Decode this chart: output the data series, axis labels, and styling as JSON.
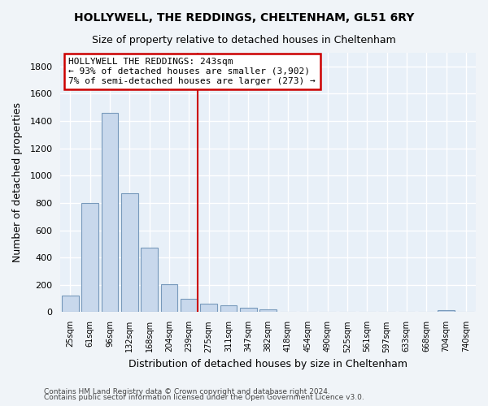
{
  "title": "HOLLYWELL, THE REDDINGS, CHELTENHAM, GL51 6RY",
  "subtitle": "Size of property relative to detached houses in Cheltenham",
  "xlabel": "Distribution of detached houses by size in Cheltenham",
  "ylabel": "Number of detached properties",
  "bar_color": "#c8d8ec",
  "bar_edge_color": "#7799bb",
  "background_color": "#f0f4f8",
  "plot_bg_color": "#e8f0f8",
  "grid_color": "#ffffff",
  "categories": [
    "25sqm",
    "61sqm",
    "96sqm",
    "132sqm",
    "168sqm",
    "204sqm",
    "239sqm",
    "275sqm",
    "311sqm",
    "347sqm",
    "382sqm",
    "418sqm",
    "454sqm",
    "490sqm",
    "525sqm",
    "561sqm",
    "597sqm",
    "633sqm",
    "668sqm",
    "704sqm",
    "740sqm"
  ],
  "values": [
    120,
    800,
    1460,
    870,
    475,
    205,
    100,
    65,
    50,
    30,
    20,
    0,
    0,
    0,
    0,
    0,
    0,
    0,
    0,
    15,
    0
  ],
  "ylim": [
    0,
    1900
  ],
  "yticks": [
    0,
    200,
    400,
    600,
    800,
    1000,
    1200,
    1400,
    1600,
    1800
  ],
  "marker_idx": 6,
  "marker_color": "#cc0000",
  "annotation_title": "HOLLYWELL THE REDDINGS: 243sqm",
  "annotation_line1": "← 93% of detached houses are smaller (3,902)",
  "annotation_line2": "7% of semi-detached houses are larger (273) →",
  "annotation_box_color": "#ffffff",
  "annotation_box_edge_color": "#cc0000",
  "footer_line1": "Contains HM Land Registry data © Crown copyright and database right 2024.",
  "footer_line2": "Contains public sector information licensed under the Open Government Licence v3.0."
}
